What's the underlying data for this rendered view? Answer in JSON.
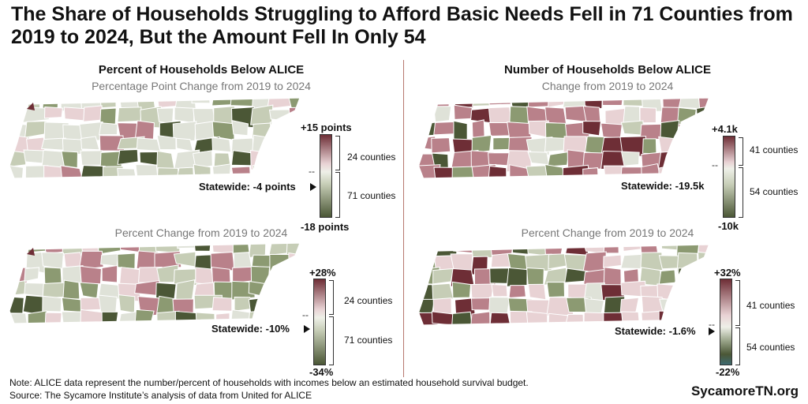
{
  "title": "The Share of Households Struggling to Afford Basic Needs Fell in 71 Counties from 2019 to 2024, But the Amount Fell In Only 54",
  "colors": {
    "up_dark": "#6e2e36",
    "up_mid": "#b9818a",
    "up_light": "#e8d2d4",
    "neutral": "#dfe2d8",
    "down_light": "#c6cdb6",
    "down_mid": "#8c9a72",
    "down_dark": "#4b5736",
    "teal": "#3f6a70"
  },
  "left": {
    "heading": "Percent of Households Below ALICE",
    "top": {
      "subtitle": "Percentage Point Change from 2019 to 2024",
      "max_label": "+15 points",
      "min_label": "-18 points",
      "zero_label": "--",
      "up_count": "24 counties",
      "down_count": "71 counties",
      "statewide": "Statewide: -4 points",
      "statewide_value": -4
    },
    "bottom": {
      "subtitle": "Percent Change from 2019 to 2024",
      "max_label": "+28%",
      "min_label": "-34%",
      "zero_label": "--",
      "up_count": "24 counties",
      "down_count": "71 counties",
      "statewide": "Statewide: -10%",
      "statewide_value": -10
    }
  },
  "right": {
    "heading": "Number of Households Below ALICE",
    "top": {
      "subtitle": "Change from 2019 to 2024",
      "max_label": "+4.1k",
      "min_label": "-10k",
      "zero_label": "--",
      "up_count": "41 counties",
      "down_count": "54 counties",
      "statewide": "Statewide: -19.5k",
      "statewide_value": -19.5
    },
    "bottom": {
      "subtitle": "Percent Change from 2019 to 2024",
      "max_label": "+32%",
      "min_label": "-22%",
      "zero_label": "--",
      "up_count": "41 counties",
      "down_count": "54 counties",
      "statewide": "Statewide: -1.6%",
      "statewide_value": -1.6
    }
  },
  "note": "Note: ALICE data represent the number/percent of households with incomes below an estimated household survival budget.",
  "source": "Source: The Sycamore Institute’s analysis of data from United for ALICE",
  "brand": "SycamoreTN.org"
}
